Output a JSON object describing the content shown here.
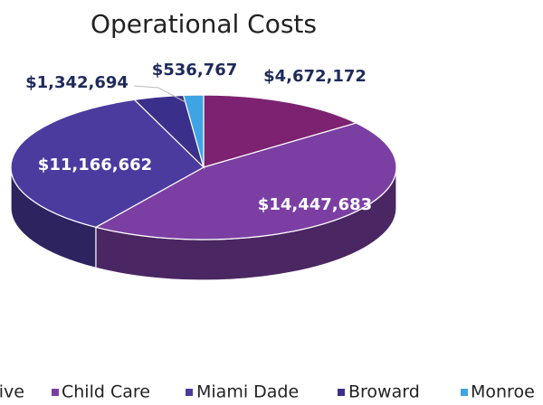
{
  "chart_data": {
    "type": "pie3d",
    "title": "Operational Costs",
    "categories": [
      "Administrative",
      "Child Care",
      "Miami Dade",
      "Broward",
      "Monroe"
    ],
    "values": [
      4672172,
      14447683,
      11166662,
      1342694,
      536767
    ],
    "value_labels": [
      "$4,672,172",
      "$14,447,683",
      "$11,166,662",
      "$1,342,694",
      "$536,767"
    ],
    "colors": [
      "#7c2270",
      "#7b3fa3",
      "#4b3b9f",
      "#3b2f8c",
      "#3ea4e4"
    ],
    "legend": "bottom"
  }
}
